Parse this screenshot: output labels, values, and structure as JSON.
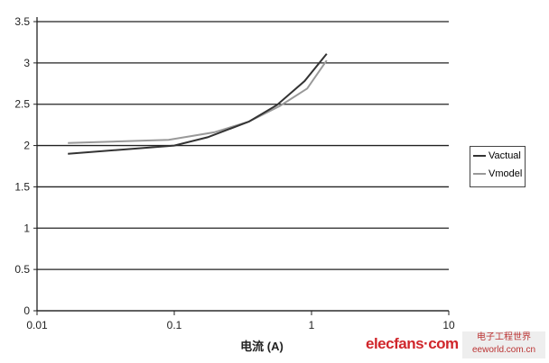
{
  "chart_data": {
    "type": "line",
    "xlabel": "电流 (A)",
    "ylabel": "",
    "xscale": "log",
    "xlim": [
      0.01,
      10
    ],
    "ylim": [
      0,
      3.5
    ],
    "xticks": [
      "0.01",
      "0.1",
      "1",
      "10"
    ],
    "yticks": [
      "0",
      "0.5",
      "1",
      "1.5",
      "2",
      "2.5",
      "3",
      "3.5"
    ],
    "grid": "horizontal",
    "legend_position": "right",
    "series": [
      {
        "name": "Vactual",
        "color": "#333333",
        "x": [
          0.0168,
          0.1,
          0.175,
          0.35,
          0.56,
          0.89,
          1.29
        ],
        "y": [
          1.9,
          2.0,
          2.1,
          2.29,
          2.49,
          2.78,
          3.11
        ]
      },
      {
        "name": "Vmodel",
        "color": "#999999",
        "x": [
          0.0168,
          0.091,
          0.195,
          0.35,
          0.59,
          0.93,
          1.29
        ],
        "y": [
          2.03,
          2.07,
          2.16,
          2.29,
          2.48,
          2.69,
          3.03
        ]
      }
    ]
  },
  "watermark": {
    "brand": "elecfans·com",
    "site": "电子工程世界",
    "url": "eeworld.com.cn"
  }
}
